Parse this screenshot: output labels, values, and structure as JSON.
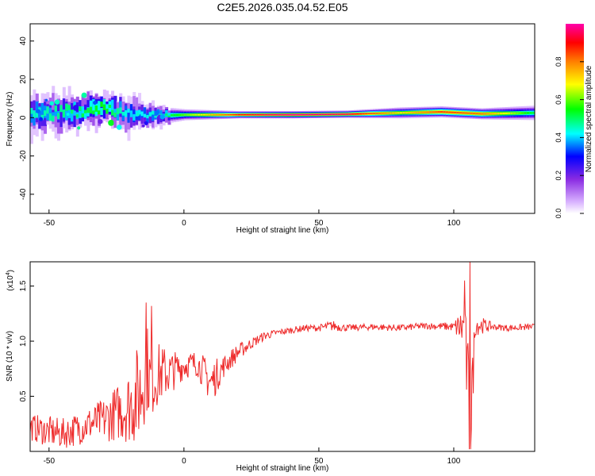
{
  "chart_data": [
    {
      "type": "heatmap",
      "title": "C2E5.2026.035.04.52.E05",
      "xlabel": "Height of straight line (km)",
      "ylabel": "Frequency (Hz)",
      "xlim": [
        -57,
        130
      ],
      "ylim": [
        -50,
        49
      ],
      "xticks": [
        -50,
        0,
        50,
        100
      ],
      "yticks": [
        -40,
        -20,
        0,
        20,
        40
      ],
      "colorbar": {
        "label": "Normalized spectral amplitude",
        "range": [
          0,
          1
        ],
        "ticks": [
          "0.0",
          "0.2",
          "0.4",
          "0.6",
          "0.8"
        ],
        "colors": [
          "#ffffff",
          "#d9b3ff",
          "#8a2be2",
          "#0000ff",
          "#00ffff",
          "#00ff00",
          "#ffff00",
          "#ff8000",
          "#ff0000",
          "#ff00aa"
        ]
      },
      "band": {
        "description_points": [
          {
            "x": -55,
            "f_center": 2,
            "f_spread": 10,
            "intensity": 0.45
          },
          {
            "x": -40,
            "f_center": 3,
            "f_spread": 9,
            "intensity": 0.5
          },
          {
            "x": -30,
            "f_center": 5,
            "f_spread": 8,
            "intensity": 0.55
          },
          {
            "x": -20,
            "f_center": 2,
            "f_spread": 9,
            "intensity": 0.4
          },
          {
            "x": -10,
            "f_center": 1,
            "f_spread": 5,
            "intensity": 0.45
          },
          {
            "x": 0,
            "f_center": 1.5,
            "f_spread": 3,
            "intensity": 0.6
          },
          {
            "x": 20,
            "f_center": 1.5,
            "f_spread": 2,
            "intensity": 0.9
          },
          {
            "x": 40,
            "f_center": 1.5,
            "f_spread": 2,
            "intensity": 1.0
          },
          {
            "x": 60,
            "f_center": 1.8,
            "f_spread": 2,
            "intensity": 0.95
          },
          {
            "x": 80,
            "f_center": 2.5,
            "f_spread": 3,
            "intensity": 0.7
          },
          {
            "x": 95,
            "f_center": 3,
            "f_spread": 3,
            "intensity": 0.85
          },
          {
            "x": 110,
            "f_center": 2,
            "f_spread": 3,
            "intensity": 0.8
          },
          {
            "x": 130,
            "f_center": 2.5,
            "f_spread": 4,
            "intensity": 0.5
          }
        ]
      }
    },
    {
      "type": "line",
      "xlabel": "Height of straight line (km)",
      "ylabel": "SNR (10 * v/v)",
      "y_multiplier": "(x10",
      "y_multiplier_exp": "4",
      "y_multiplier_close": ")",
      "xlim": [
        -57,
        130
      ],
      "ylim": [
        0,
        1.72
      ],
      "xticks": [
        -50,
        0,
        50,
        100
      ],
      "yticks": [
        "0.5",
        "1.0",
        "1.5"
      ],
      "series": [
        {
          "name": "SNR",
          "color": "#ee2a2a",
          "x": [
            -57,
            -50,
            -45,
            -40,
            -35,
            -30,
            -25,
            -20,
            -16,
            -14,
            -12,
            -10,
            -5,
            0,
            5,
            10,
            15,
            20,
            25,
            30,
            35,
            40,
            45,
            50,
            55,
            60,
            70,
            80,
            90,
            100,
            104,
            106,
            108,
            115,
            120,
            130
          ],
          "y": [
            0.22,
            0.18,
            0.16,
            0.2,
            0.25,
            0.28,
            0.35,
            0.42,
            0.55,
            0.8,
            0.6,
            0.7,
            0.72,
            0.78,
            0.8,
            0.62,
            0.78,
            0.9,
            0.98,
            1.05,
            1.08,
            1.1,
            1.12,
            1.12,
            1.14,
            1.12,
            1.13,
            1.12,
            1.14,
            1.13,
            1.12,
            0.22,
            1.15,
            1.13,
            1.12,
            1.13
          ],
          "noise_amplitude": [
            0.12,
            0.14,
            0.14,
            0.15,
            0.16,
            0.2,
            0.25,
            0.35,
            0.5,
            0.45,
            0.3,
            0.3,
            0.2,
            0.12,
            0.12,
            0.2,
            0.1,
            0.08,
            0.05,
            0.04,
            0.03,
            0.03,
            0.03,
            0.03,
            0.05,
            0.03,
            0.03,
            0.03,
            0.03,
            0.04,
            0.25,
            0.6,
            0.1,
            0.03,
            0.03,
            0.03
          ],
          "spikes": [
            {
              "x": -14,
              "y": 1.35
            },
            {
              "x": -12,
              "y": 1.32
            },
            {
              "x": 104,
              "y": 1.55
            },
            {
              "x": 106,
              "y": 1.72
            },
            {
              "x": 106.5,
              "y": 0.2
            },
            {
              "x": 107,
              "y": 0.85
            }
          ]
        }
      ]
    }
  ]
}
